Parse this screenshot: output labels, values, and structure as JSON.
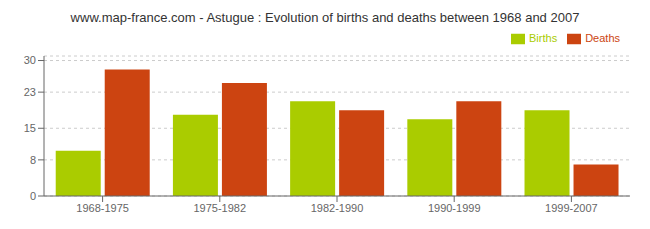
{
  "chart_data": {
    "type": "bar",
    "title": "www.map-france.com - Astugue : Evolution of births and deaths between 1968 and 2007",
    "categories": [
      "1968-1975",
      "1975-1982",
      "1982-1990",
      "1990-1999",
      "1999-2007"
    ],
    "series": [
      {
        "name": "Births",
        "color": "#aacc00",
        "values": [
          10,
          18,
          21,
          17,
          19
        ]
      },
      {
        "name": "Deaths",
        "color": "#cc4411",
        "values": [
          28,
          25,
          19,
          21,
          7
        ]
      }
    ],
    "ylim": [
      0,
      31
    ],
    "yticks": [
      0,
      8,
      15,
      23,
      30
    ],
    "grid": true,
    "legend": "upper right"
  }
}
